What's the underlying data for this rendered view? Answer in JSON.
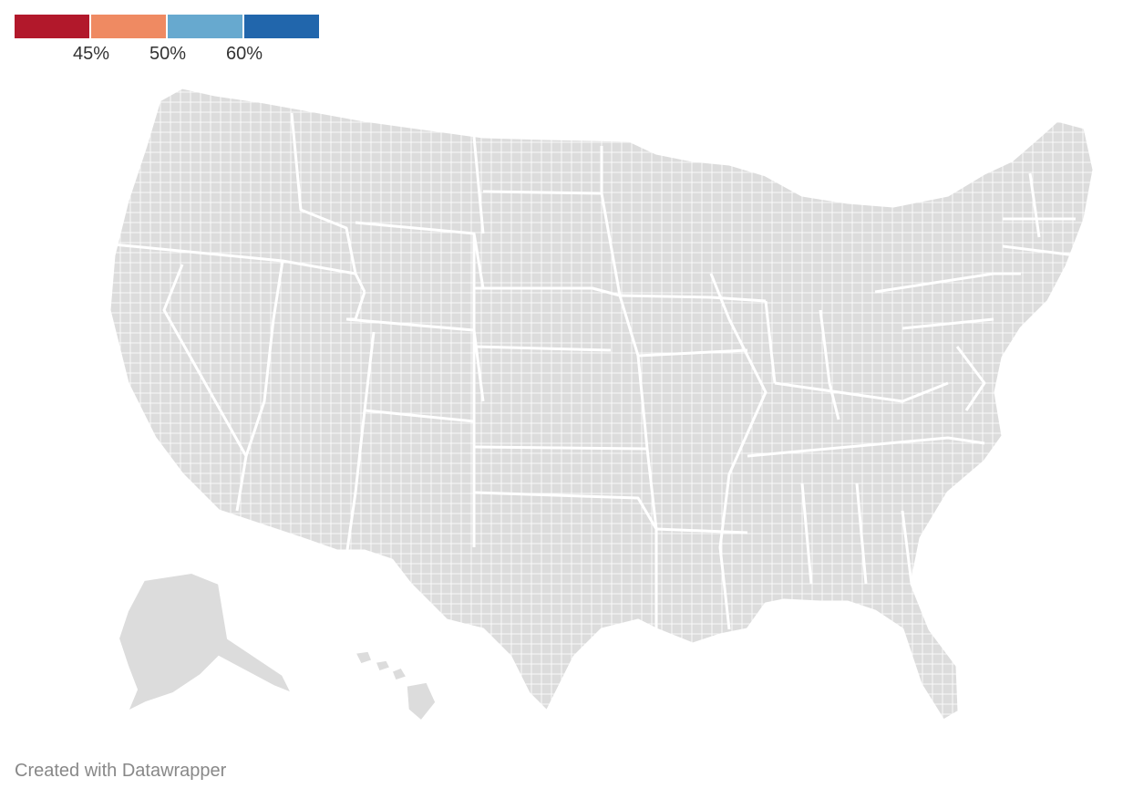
{
  "legend": {
    "bins": [
      {
        "color": "#b2182b"
      },
      {
        "color": "#ef8a62"
      },
      {
        "color": "#67a9cf"
      },
      {
        "color": "#2166ac"
      }
    ],
    "ticks": [
      "45%",
      "50%",
      "60%"
    ]
  },
  "map": {
    "base_color": "#dcdcdc",
    "border_color": "#ffffff",
    "layers": [
      "contiguous-us",
      "alaska",
      "hawaii"
    ]
  },
  "credit": "Created with Datawrapper"
}
